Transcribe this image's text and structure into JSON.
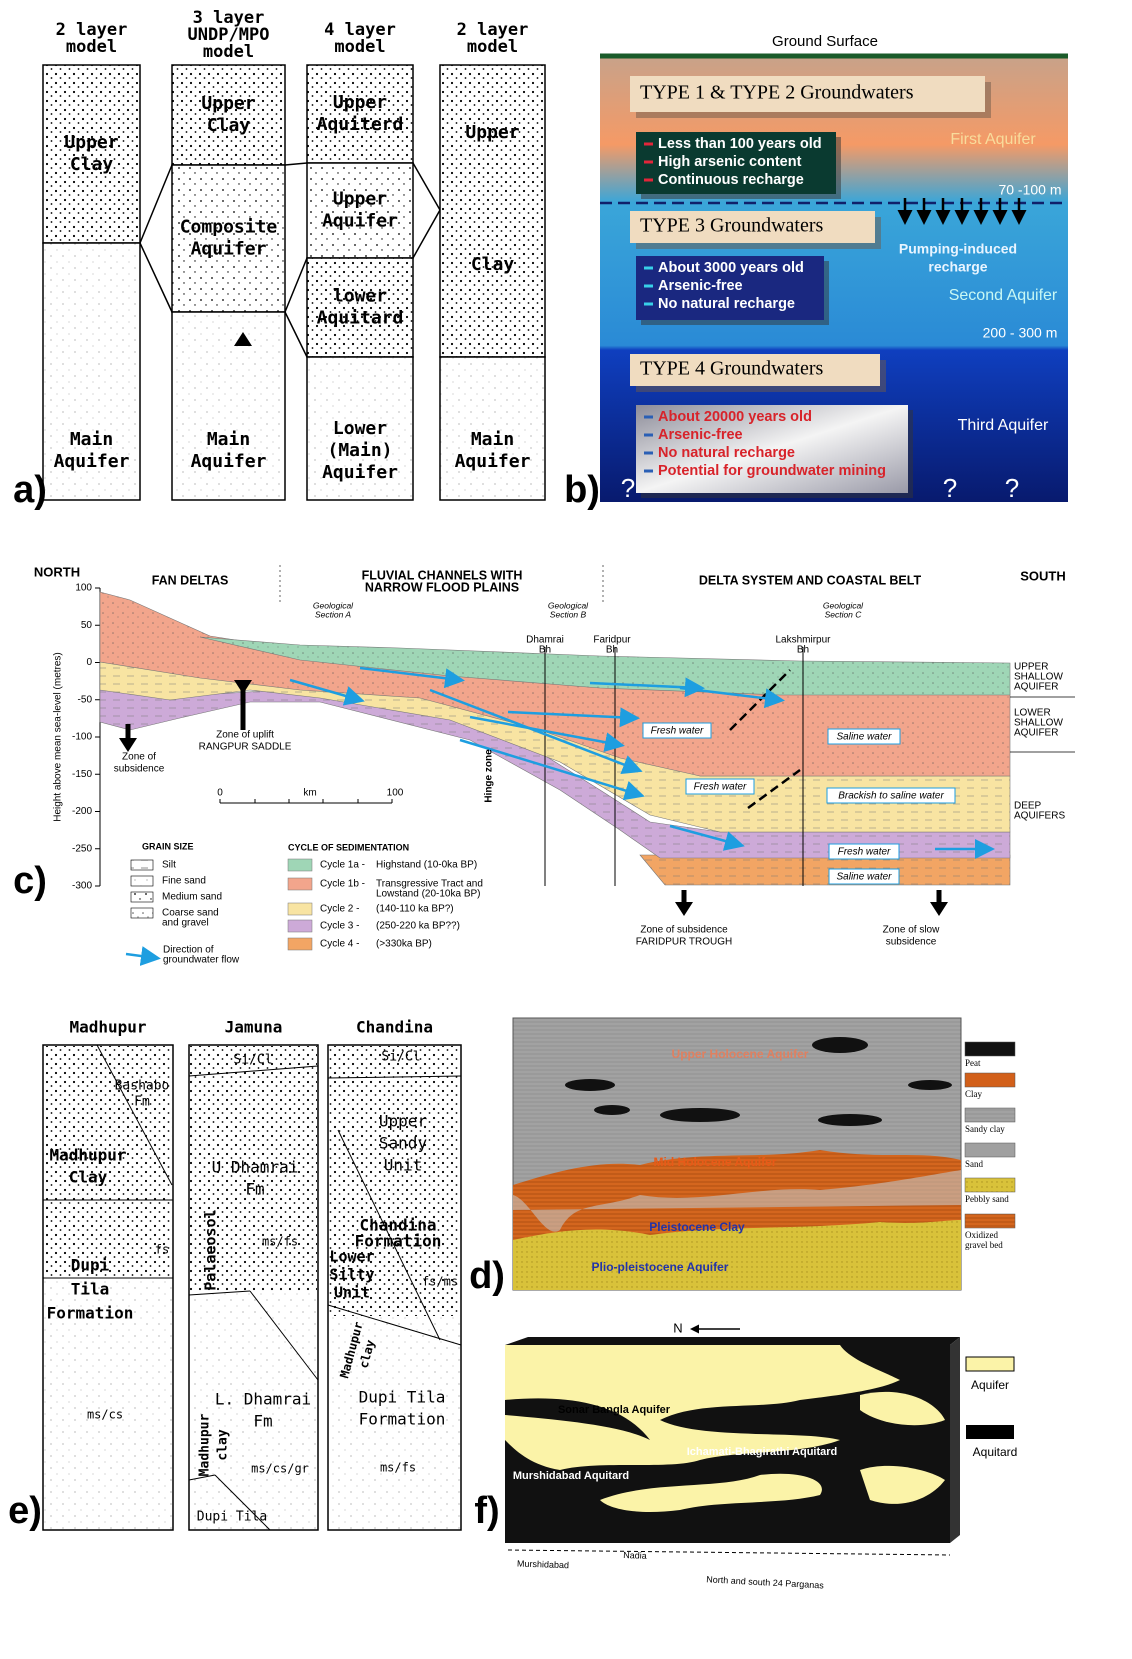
{
  "panel_a": {
    "label": "a)",
    "columns": [
      {
        "header": [
          "2 layer",
          "model"
        ],
        "layers": [
          [
            "Upper",
            "Clay"
          ],
          [
            "Main",
            "Aquifer"
          ]
        ]
      },
      {
        "header": [
          "3 layer",
          "UNDP/MPO",
          "model"
        ],
        "layers": [
          [
            "Upper",
            "Clay"
          ],
          [
            "Composite",
            "Aquifer"
          ],
          [
            "Main",
            "Aquifer"
          ]
        ]
      },
      {
        "header": [
          "4 layer",
          "model"
        ],
        "layers": [
          [
            "Upper",
            "Aquiterd"
          ],
          [
            "Upper",
            "Aquifer"
          ],
          [
            "lower",
            "Aquitard"
          ],
          [
            "Lower",
            "(Main)",
            "Aquifer"
          ]
        ]
      },
      {
        "header": [
          "2 layer",
          "model"
        ],
        "layers": [
          [
            "Upper",
            "Clay"
          ],
          [
            "Main",
            "Aquifer"
          ]
        ]
      }
    ]
  },
  "panel_b": {
    "label": "b)",
    "ground_surface": "Ground Surface",
    "groups": [
      {
        "title": "TYPE 1 & TYPE 2  Groundwaters",
        "bullets": [
          "Less than 100 years old",
          "High arsenic content",
          "Continuous recharge"
        ]
      },
      {
        "title": "TYPE 3  Groundwaters",
        "bullets": [
          "About 3000 years old",
          "Arsenic-free",
          "No natural recharge"
        ]
      },
      {
        "title": "TYPE 4  Groundwaters",
        "bullets": [
          "About 20000 years old",
          "Arsenic-free",
          "No natural recharge",
          "Potential for groundwater mining"
        ]
      }
    ],
    "aquifers": [
      "First Aquifer",
      "Second Aquifer",
      "Third Aquifer"
    ],
    "depths": [
      "70 -100 m",
      "200 - 300 m"
    ],
    "pumping": [
      "Pumping-induced",
      "recharge"
    ],
    "unknowns": [
      "?",
      "?",
      "?"
    ]
  },
  "panel_c": {
    "label": "c)",
    "north": "NORTH",
    "south": "SOUTH",
    "regions": [
      [
        "FAN DELTAS"
      ],
      [
        "FLUVIAL CHANNELS WITH",
        "NARROW FLOOD PLAINS"
      ],
      [
        "DELTA SYSTEM AND COASTAL BELT"
      ]
    ],
    "y_label": "Height above mean sea-level (metres)",
    "yticks": [
      100,
      50,
      0,
      -50,
      -100,
      -150,
      -200,
      -250,
      -300
    ],
    "sections": [
      [
        "Geological",
        "Section A"
      ],
      [
        "Geological",
        "Section B"
      ],
      [
        "Geological",
        "Section C"
      ]
    ],
    "boreholes": [
      [
        "Dhamrai",
        "Bh"
      ],
      [
        "Faridpur",
        "Bh"
      ],
      [
        "Lakshmirpur",
        "Bh"
      ]
    ],
    "aquifer_labels": [
      [
        "UPPER",
        "SHALLOW",
        "AQUIFER"
      ],
      [
        "LOWER",
        "SHALLOW",
        "AQUIFER"
      ],
      [
        "DEEP",
        "AQUIFERS"
      ]
    ],
    "water_boxes": [
      "Fresh water",
      "Saline water",
      "Fresh water",
      "Brackish to saline water",
      "Fresh water",
      "Saline water"
    ],
    "zones": [
      [
        "Zone of",
        "subsidence"
      ],
      [
        "Zone of uplift",
        "RANGPUR SADDLE"
      ],
      [
        "Hinge zone"
      ],
      [
        "Zone of subsidence",
        "FARIDPUR TROUGH"
      ],
      [
        "Zone of slow",
        "subsidence"
      ]
    ],
    "scale": [
      "0",
      "km",
      "100"
    ],
    "grain_size": {
      "title": "GRAIN SIZE",
      "items": [
        [
          "Silt"
        ],
        [
          "Fine sand"
        ],
        [
          "Medium sand"
        ],
        [
          "Coarse sand",
          "and gravel"
        ]
      ]
    },
    "cycles": {
      "title": "CYCLE OF SEDIMENTATION",
      "items": [
        {
          "name": "Cycle 1a -",
          "desc": [
            "Highstand (10-0ka BP)"
          ],
          "color": "#9fd6b6"
        },
        {
          "name": "Cycle 1b -",
          "desc": [
            "Transgressive Tract and",
            "Lowstand (20-10ka BP)"
          ],
          "color": "#f2a58c"
        },
        {
          "name": "Cycle 2 -",
          "desc": [
            "(140-110 ka BP?)"
          ],
          "color": "#f8e4a2"
        },
        {
          "name": "Cycle 3 -",
          "desc": [
            "(250-220 ka BP??)"
          ],
          "color": "#cdaad8"
        },
        {
          "name": "Cycle 4 -",
          "desc": [
            "(>330ka BP)"
          ],
          "color": "#f2a564"
        }
      ]
    },
    "flow_legend": [
      "Direction of",
      "groundwater flow"
    ]
  },
  "panel_d": {
    "label": "d)",
    "layers": [
      "Upper Holocene Aquifer",
      "Mid Holocene Aquifer",
      "Pleistocene Clay",
      "Plio-pleistocene Aquifer"
    ],
    "legend": [
      [
        "Peat"
      ],
      [
        "Clay"
      ],
      [
        "Sandy clay"
      ],
      [
        "Sand"
      ],
      [
        "Pebbly sand"
      ],
      [
        "Oxidized",
        "gravel bed"
      ]
    ]
  },
  "panel_e": {
    "label": "e)",
    "columns": [
      {
        "name": "Madhupur",
        "texts": [
          [
            "Bashabo",
            "Fm"
          ],
          [
            "Madhupur",
            "Clay"
          ],
          [
            "fs"
          ],
          [
            "Dupi",
            "Tila",
            "Formation"
          ],
          [
            "ms/cs"
          ]
        ]
      },
      {
        "name": "Jamuna",
        "texts": [
          [
            "Si/Cl"
          ],
          [
            "U Dhamrai",
            "Fm"
          ],
          [
            "Palaeosol"
          ],
          [
            "ms/fs"
          ],
          [
            "L. Dhamrai",
            "Fm"
          ],
          [
            "Madhupur",
            "clay"
          ],
          [
            "ms/cs/gr"
          ],
          [
            "Dupi Tila"
          ]
        ]
      },
      {
        "name": "Chandina",
        "texts": [
          [
            "Si/Cl"
          ],
          [
            "Upper",
            "Sandy",
            "Unit"
          ],
          [
            "Chandina",
            "Formation"
          ],
          [
            "Lower",
            "Silty",
            "Unit"
          ],
          [
            "fs/ms"
          ],
          [
            "Madhupur",
            "clay"
          ],
          [
            "Dupi Tila",
            "Formation"
          ],
          [
            "ms/fs"
          ]
        ]
      }
    ]
  },
  "panel_f": {
    "label": "f)",
    "north": "N",
    "units": [
      "Sonar Bangla Aquifer",
      "Ichamati-Bhagirathi Aquitard",
      "Murshidabad Aquitard"
    ],
    "legend": [
      "Aquifer",
      "Aquitard"
    ],
    "districts": [
      "Murshidabad",
      "Nadia",
      "North and south 24 Parganas"
    ]
  }
}
